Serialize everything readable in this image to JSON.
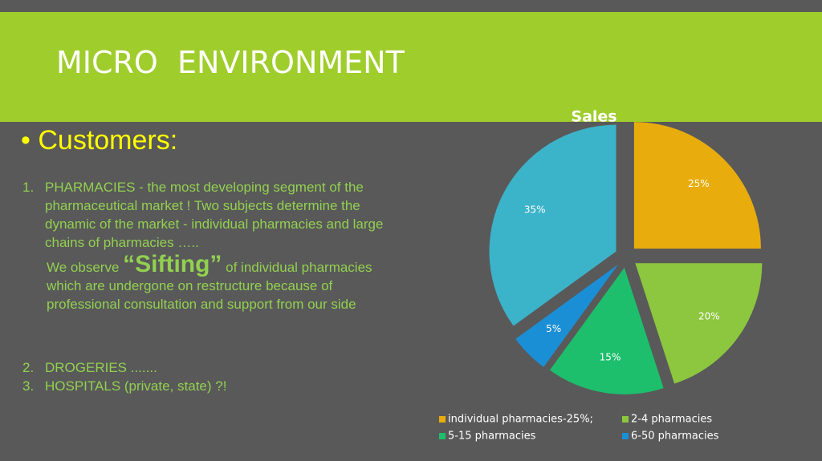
{
  "header": {
    "title": "MICRO  ENVIRONMENT"
  },
  "bullet": "Customers:",
  "list": [
    {
      "number": "1.",
      "text": "PHARMACIES -  the most developing segment of the pharmaceutical market ! Two subjects determine  the dynamic of the market  - individual pharmacies and large chains of pharmacies ….."
    },
    {
      "number": "2.",
      "text": "DROGERIES ......."
    },
    {
      "number": "3.",
      "text": "HOSPITALS (private, state) ?!"
    }
  ],
  "note": {
    "before": "We observe ",
    "emphasis": "“Sifting”",
    "after": " of individual pharmacies  which are undergone on restructure because of professional consultation and support from our side"
  },
  "chart_data": {
    "type": "pie",
    "title": "Sales",
    "categories": [
      "individual pharmacies-25%;",
      "2-4 pharmacies",
      "5-15 pharmacies",
      "6-50 pharmacies",
      null
    ],
    "values": [
      25,
      20,
      15,
      5,
      35
    ],
    "value_labels": [
      "25%",
      "20%",
      "15%",
      "5%",
      "35%"
    ],
    "colors": [
      "#e8ad0c",
      "#8dc63f",
      "#1dbf6c",
      "#1b8fd6",
      "#3bb3c9"
    ]
  }
}
